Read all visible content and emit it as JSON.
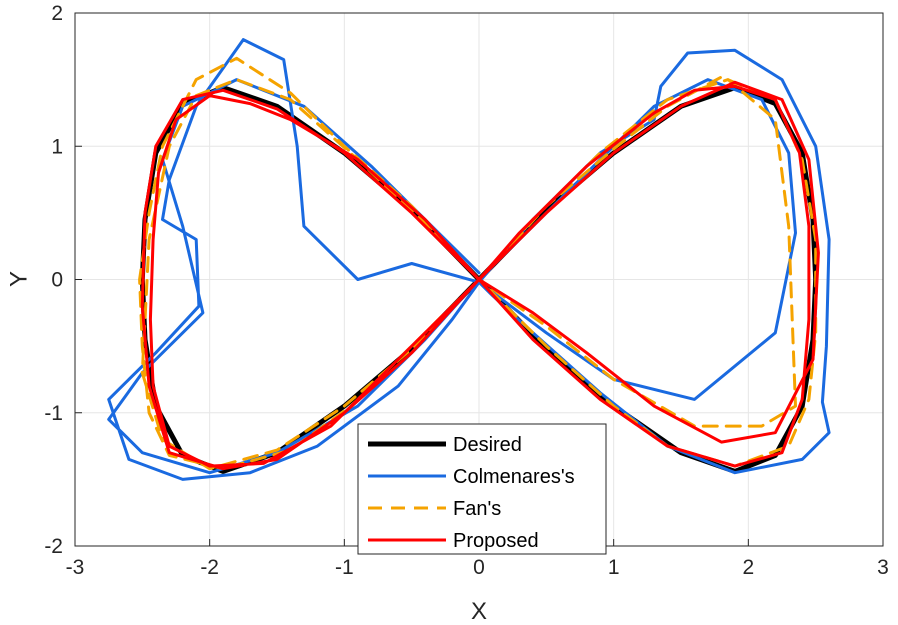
{
  "chart_data": {
    "type": "line",
    "title": "",
    "xlabel": "X",
    "ylabel": "Y",
    "xlim": [
      -3,
      3
    ],
    "ylim": [
      -2,
      2
    ],
    "xticks": [
      "-3",
      "-2",
      "-1",
      "0",
      "1",
      "2",
      "3"
    ],
    "yticks": [
      "-2",
      "-1",
      "0",
      "1",
      "2"
    ],
    "grid": true,
    "legend_position": "bottom-center",
    "series": [
      {
        "name": "Desired",
        "color": "#000000",
        "style": "solid",
        "points": [
          [
            0,
            0
          ],
          [
            0.5,
            0.52
          ],
          [
            1,
            0.95
          ],
          [
            1.5,
            1.3
          ],
          [
            1.9,
            1.44
          ],
          [
            2.2,
            1.32
          ],
          [
            2.4,
            0.95
          ],
          [
            2.48,
            0.45
          ],
          [
            2.5,
            0
          ],
          [
            2.48,
            -0.45
          ],
          [
            2.4,
            -0.95
          ],
          [
            2.2,
            -1.32
          ],
          [
            1.9,
            -1.44
          ],
          [
            1.5,
            -1.3
          ],
          [
            1,
            -0.95
          ],
          [
            0.5,
            -0.52
          ],
          [
            0,
            0
          ],
          [
            -0.5,
            0.52
          ],
          [
            -1,
            0.95
          ],
          [
            -1.5,
            1.3
          ],
          [
            -1.9,
            1.44
          ],
          [
            -2.2,
            1.32
          ],
          [
            -2.4,
            0.95
          ],
          [
            -2.48,
            0.45
          ],
          [
            -2.5,
            0
          ],
          [
            -2.48,
            -0.45
          ],
          [
            -2.4,
            -0.95
          ],
          [
            -2.2,
            -1.32
          ],
          [
            -1.9,
            -1.44
          ],
          [
            -1.5,
            -1.3
          ],
          [
            -1,
            -0.95
          ],
          [
            -0.5,
            -0.52
          ],
          [
            0,
            0
          ]
        ]
      },
      {
        "name": "Colmenares's",
        "color": "#1a6ae0",
        "style": "solid",
        "points": [
          [
            0,
            -0.02
          ],
          [
            -0.5,
            0.12
          ],
          [
            -0.9,
            0
          ],
          [
            -1.3,
            0.4
          ],
          [
            -1.35,
            1
          ],
          [
            -1.45,
            1.65
          ],
          [
            -1.75,
            1.8
          ],
          [
            -2.1,
            1.3
          ],
          [
            -2.3,
            0.75
          ],
          [
            -2.35,
            0.45
          ],
          [
            -2.1,
            0.3
          ],
          [
            -2.08,
            -0.2
          ],
          [
            -2.4,
            -0.55
          ],
          [
            -2.75,
            -0.9
          ],
          [
            -2.6,
            -1.35
          ],
          [
            -2.2,
            -1.5
          ],
          [
            -1.7,
            -1.45
          ],
          [
            -1.2,
            -1.25
          ],
          [
            -0.6,
            -0.8
          ],
          [
            -0.2,
            -0.3
          ],
          [
            0,
            -0.02
          ],
          [
            0.4,
            0.45
          ],
          [
            0.9,
            0.95
          ],
          [
            1.3,
            1.2
          ],
          [
            1.35,
            1.45
          ],
          [
            1.55,
            1.7
          ],
          [
            1.9,
            1.72
          ],
          [
            2.25,
            1.5
          ],
          [
            2.5,
            1
          ],
          [
            2.6,
            0.3
          ],
          [
            2.58,
            -0.5
          ],
          [
            2.55,
            -0.92
          ],
          [
            2.6,
            -1.15
          ],
          [
            2.4,
            -1.35
          ],
          [
            1.9,
            -1.45
          ],
          [
            1.4,
            -1.25
          ],
          [
            0.9,
            -0.85
          ],
          [
            0.4,
            -0.4
          ],
          [
            0.1,
            -0.12
          ],
          [
            0,
            -0.02
          ],
          [
            0.5,
            -0.4
          ],
          [
            1,
            -0.75
          ],
          [
            1.6,
            -0.9
          ],
          [
            2.2,
            -0.4
          ],
          [
            2.35,
            0.35
          ],
          [
            2.3,
            0.95
          ],
          [
            2.1,
            1.35
          ],
          [
            1.7,
            1.5
          ],
          [
            1.3,
            1.3
          ],
          [
            0.8,
            0.8
          ],
          [
            0.3,
            0.3
          ],
          [
            0,
            0
          ],
          [
            -0.4,
            -0.45
          ],
          [
            -0.9,
            -0.95
          ],
          [
            -1.5,
            -1.3
          ],
          [
            -2,
            -1.45
          ],
          [
            -2.5,
            -1.3
          ],
          [
            -2.75,
            -1.05
          ],
          [
            -2.5,
            -0.7
          ],
          [
            -2.3,
            -0.5
          ],
          [
            -2.05,
            -0.25
          ],
          [
            -2.2,
            0.4
          ],
          [
            -2.35,
            0.9
          ],
          [
            -2.2,
            1.3
          ],
          [
            -1.8,
            1.5
          ],
          [
            -1.3,
            1.3
          ],
          [
            -0.8,
            0.85
          ],
          [
            -0.3,
            0.35
          ],
          [
            0,
            0.05
          ]
        ]
      },
      {
        "name": "Fan's",
        "color": "#f5a300",
        "style": "dashed",
        "points": [
          [
            0,
            0
          ],
          [
            -0.5,
            0.55
          ],
          [
            -1,
            1
          ],
          [
            -1.4,
            1.4
          ],
          [
            -1.8,
            1.66
          ],
          [
            -2.1,
            1.5
          ],
          [
            -2.35,
            1
          ],
          [
            -2.45,
            0.5
          ],
          [
            -2.52,
            0
          ],
          [
            -2.5,
            -0.5
          ],
          [
            -2.45,
            -1
          ],
          [
            -2.3,
            -1.32
          ],
          [
            -1.9,
            -1.42
          ],
          [
            -1.4,
            -1.28
          ],
          [
            -0.95,
            -0.95
          ],
          [
            -0.5,
            -0.5
          ],
          [
            0,
            0
          ],
          [
            0.5,
            0.55
          ],
          [
            1,
            0.98
          ],
          [
            1.4,
            1.3
          ],
          [
            1.8,
            1.52
          ],
          [
            2.2,
            1.35
          ],
          [
            2.4,
            0.9
          ],
          [
            2.5,
            0.3
          ],
          [
            2.5,
            -0.4
          ],
          [
            2.45,
            -0.9
          ],
          [
            2.3,
            -1.25
          ],
          [
            1.9,
            -1.4
          ],
          [
            1.4,
            -1.25
          ],
          [
            1,
            -0.95
          ],
          [
            0.5,
            -0.5
          ],
          [
            0,
            0
          ],
          [
            0.5,
            -0.35
          ],
          [
            1,
            -0.75
          ],
          [
            1.6,
            -1.1
          ],
          [
            2.1,
            -1.1
          ],
          [
            2.35,
            -0.95
          ],
          [
            2.3,
            0.4
          ],
          [
            2.2,
            1.2
          ],
          [
            1.85,
            1.5
          ],
          [
            1.4,
            1.35
          ],
          [
            0.9,
            0.95
          ],
          [
            0.4,
            0.45
          ],
          [
            0,
            0
          ],
          [
            -0.5,
            -0.52
          ],
          [
            -1,
            -0.95
          ],
          [
            -1.5,
            -1.28
          ],
          [
            -2,
            -1.42
          ],
          [
            -2.35,
            -1.2
          ],
          [
            -2.5,
            -0.7
          ],
          [
            -2.45,
            0.3
          ],
          [
            -2.3,
            1
          ],
          [
            -2.1,
            1.38
          ],
          [
            -1.8,
            1.5
          ],
          [
            -1.4,
            1.35
          ],
          [
            -0.9,
            0.9
          ],
          [
            -0.4,
            0.42
          ],
          [
            0,
            0
          ]
        ]
      },
      {
        "name": "Proposed",
        "color": "#ff0000",
        "style": "solid",
        "points": [
          [
            0,
            0
          ],
          [
            -0.4,
            0.45
          ],
          [
            -0.9,
            0.9
          ],
          [
            -1.4,
            1.2
          ],
          [
            -1.7,
            1.32
          ],
          [
            -2,
            1.38
          ],
          [
            -2.25,
            1.2
          ],
          [
            -2.38,
            0.8
          ],
          [
            -2.42,
            0.3
          ],
          [
            -2.44,
            -0.3
          ],
          [
            -2.42,
            -0.8
          ],
          [
            -2.3,
            -1.25
          ],
          [
            -2,
            -1.4
          ],
          [
            -1.6,
            -1.38
          ],
          [
            -1.1,
            -1.1
          ],
          [
            -0.6,
            -0.6
          ],
          [
            -0.2,
            -0.2
          ],
          [
            0,
            0
          ],
          [
            0.3,
            0.35
          ],
          [
            0.8,
            0.85
          ],
          [
            1.3,
            1.25
          ],
          [
            1.6,
            1.42
          ],
          [
            1.9,
            1.45
          ],
          [
            2.2,
            1.35
          ],
          [
            2.38,
            0.95
          ],
          [
            2.45,
            0.4
          ],
          [
            2.45,
            -0.3
          ],
          [
            2.4,
            -0.9
          ],
          [
            2.25,
            -1.3
          ],
          [
            1.9,
            -1.4
          ],
          [
            1.4,
            -1.25
          ],
          [
            0.9,
            -0.9
          ],
          [
            0.4,
            -0.45
          ],
          [
            0,
            0
          ],
          [
            0.4,
            -0.25
          ],
          [
            0.8,
            -0.55
          ],
          [
            1.3,
            -0.95
          ],
          [
            1.8,
            -1.22
          ],
          [
            2.2,
            -1.15
          ],
          [
            2.48,
            -0.6
          ],
          [
            2.52,
            0.2
          ],
          [
            2.45,
            0.9
          ],
          [
            2.25,
            1.35
          ],
          [
            1.9,
            1.48
          ],
          [
            1.5,
            1.3
          ],
          [
            1,
            0.95
          ],
          [
            0.5,
            0.5
          ],
          [
            0,
            0
          ],
          [
            -0.5,
            -0.55
          ],
          [
            -1,
            -1
          ],
          [
            -1.5,
            -1.35
          ],
          [
            -1.9,
            -1.42
          ],
          [
            -2.3,
            -1.3
          ],
          [
            -2.45,
            -0.8
          ],
          [
            -2.5,
            -0.2
          ],
          [
            -2.48,
            0.5
          ],
          [
            -2.4,
            1
          ],
          [
            -2.2,
            1.35
          ],
          [
            -1.9,
            1.42
          ],
          [
            -1.5,
            1.28
          ],
          [
            -1,
            0.95
          ],
          [
            -0.5,
            0.5
          ],
          [
            0,
            0
          ]
        ]
      }
    ]
  }
}
